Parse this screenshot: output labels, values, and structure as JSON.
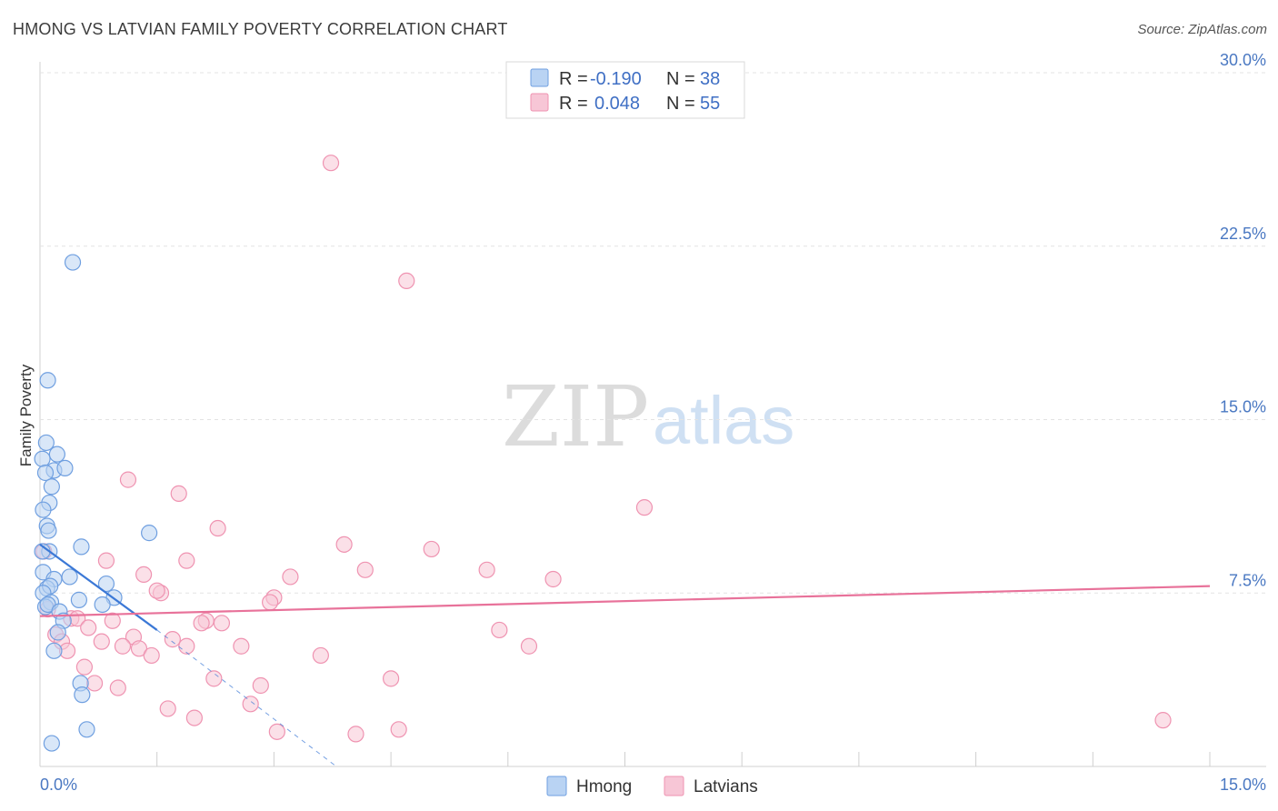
{
  "title": "HMONG VS LATVIAN FAMILY POVERTY CORRELATION CHART",
  "source": "Source: ZipAtlas.com",
  "watermark": {
    "zip": "ZIP",
    "atlas": "atlas"
  },
  "colors": {
    "hmong": "#6f9fe0",
    "hmong_fill": "#b9d3f3",
    "hmong_line": "#3b78d6",
    "latvian": "#ef93b1",
    "latvian_fill": "#f7c6d6",
    "latvian_line": "#e8729a",
    "tick_text": "#4a78c2",
    "grid": "#e3e3e3"
  },
  "legend": {
    "rows": [
      {
        "r_label": "R =",
        "r_value": "-0.190",
        "n_label": "N =",
        "n_value": "38"
      },
      {
        "r_label": "R =",
        "r_value": "0.048",
        "n_label": "N =",
        "n_value": "55"
      }
    ]
  },
  "chart_data": {
    "type": "scatter",
    "title": "HMONG VS LATVIAN FAMILY POVERTY CORRELATION CHART",
    "xlabel": "",
    "ylabel": "Family Poverty",
    "xlim": [
      0,
      15
    ],
    "ylim": [
      0,
      30
    ],
    "x_tick_labels": [
      "0.0%",
      "15.0%"
    ],
    "y_ticks": [
      7.5,
      15.0,
      22.5,
      30.0
    ],
    "y_tick_labels": [
      "7.5%",
      "15.0%",
      "22.5%",
      "30.0%"
    ],
    "grid": true,
    "series": [
      {
        "name": "Hmong",
        "r": -0.19,
        "n": 38,
        "trend": {
          "x": [
            0.0,
            1.5
          ],
          "y": [
            9.6,
            5.9
          ],
          "dashed_to": {
            "x": 3.8,
            "y": 0.0
          }
        },
        "points": [
          {
            "x": 0.42,
            "y": 21.8
          },
          {
            "x": 0.1,
            "y": 16.7
          },
          {
            "x": 0.08,
            "y": 14.0
          },
          {
            "x": 0.22,
            "y": 13.5
          },
          {
            "x": 0.03,
            "y": 13.3
          },
          {
            "x": 0.18,
            "y": 12.8
          },
          {
            "x": 0.32,
            "y": 12.9
          },
          {
            "x": 0.07,
            "y": 12.7
          },
          {
            "x": 0.15,
            "y": 12.1
          },
          {
            "x": 0.12,
            "y": 11.4
          },
          {
            "x": 0.04,
            "y": 11.1
          },
          {
            "x": 0.09,
            "y": 10.4
          },
          {
            "x": 0.11,
            "y": 10.2
          },
          {
            "x": 1.4,
            "y": 10.1
          },
          {
            "x": 0.53,
            "y": 9.5
          },
          {
            "x": 0.12,
            "y": 9.3
          },
          {
            "x": 0.03,
            "y": 9.3
          },
          {
            "x": 0.04,
            "y": 8.4
          },
          {
            "x": 0.18,
            "y": 8.1
          },
          {
            "x": 0.38,
            "y": 8.2
          },
          {
            "x": 0.85,
            "y": 7.9
          },
          {
            "x": 0.09,
            "y": 7.7
          },
          {
            "x": 0.13,
            "y": 7.8
          },
          {
            "x": 0.04,
            "y": 7.5
          },
          {
            "x": 0.5,
            "y": 7.2
          },
          {
            "x": 0.95,
            "y": 7.3
          },
          {
            "x": 0.8,
            "y": 7.0
          },
          {
            "x": 0.14,
            "y": 7.1
          },
          {
            "x": 0.07,
            "y": 6.9
          },
          {
            "x": 0.1,
            "y": 7.0
          },
          {
            "x": 0.25,
            "y": 6.7
          },
          {
            "x": 0.3,
            "y": 6.3
          },
          {
            "x": 0.23,
            "y": 5.8
          },
          {
            "x": 0.18,
            "y": 5.0
          },
          {
            "x": 0.52,
            "y": 3.6
          },
          {
            "x": 0.54,
            "y": 3.1
          },
          {
            "x": 0.6,
            "y": 1.6
          },
          {
            "x": 0.15,
            "y": 1.0
          }
        ]
      },
      {
        "name": "Latvians",
        "r": 0.048,
        "n": 55,
        "trend": {
          "x": [
            0.0,
            15.0
          ],
          "y": [
            6.5,
            7.8
          ]
        },
        "points": [
          {
            "x": 3.73,
            "y": 26.1
          },
          {
            "x": 4.7,
            "y": 21.0
          },
          {
            "x": 7.75,
            "y": 11.2
          },
          {
            "x": 1.13,
            "y": 12.4
          },
          {
            "x": 1.78,
            "y": 11.8
          },
          {
            "x": 2.28,
            "y": 10.3
          },
          {
            "x": 3.9,
            "y": 9.6
          },
          {
            "x": 5.02,
            "y": 9.4
          },
          {
            "x": 1.88,
            "y": 8.9
          },
          {
            "x": 0.85,
            "y": 8.9
          },
          {
            "x": 5.73,
            "y": 8.5
          },
          {
            "x": 4.17,
            "y": 8.5
          },
          {
            "x": 1.33,
            "y": 8.3
          },
          {
            "x": 3.21,
            "y": 8.2
          },
          {
            "x": 6.58,
            "y": 8.1
          },
          {
            "x": 1.55,
            "y": 7.5
          },
          {
            "x": 1.5,
            "y": 7.6
          },
          {
            "x": 3.0,
            "y": 7.3
          },
          {
            "x": 2.95,
            "y": 7.1
          },
          {
            "x": 0.05,
            "y": 9.3
          },
          {
            "x": 0.1,
            "y": 6.8
          },
          {
            "x": 0.4,
            "y": 6.4
          },
          {
            "x": 0.48,
            "y": 6.4
          },
          {
            "x": 0.93,
            "y": 6.3
          },
          {
            "x": 2.13,
            "y": 6.3
          },
          {
            "x": 2.07,
            "y": 6.2
          },
          {
            "x": 2.33,
            "y": 6.2
          },
          {
            "x": 0.62,
            "y": 6.0
          },
          {
            "x": 5.89,
            "y": 5.9
          },
          {
            "x": 0.2,
            "y": 5.7
          },
          {
            "x": 1.2,
            "y": 5.6
          },
          {
            "x": 1.7,
            "y": 5.5
          },
          {
            "x": 0.79,
            "y": 5.4
          },
          {
            "x": 0.28,
            "y": 5.4
          },
          {
            "x": 1.06,
            "y": 5.2
          },
          {
            "x": 1.27,
            "y": 5.1
          },
          {
            "x": 1.88,
            "y": 5.2
          },
          {
            "x": 2.58,
            "y": 5.2
          },
          {
            "x": 6.27,
            "y": 5.2
          },
          {
            "x": 0.35,
            "y": 5.0
          },
          {
            "x": 1.43,
            "y": 4.8
          },
          {
            "x": 3.6,
            "y": 4.8
          },
          {
            "x": 0.57,
            "y": 4.3
          },
          {
            "x": 2.23,
            "y": 3.8
          },
          {
            "x": 4.5,
            "y": 3.8
          },
          {
            "x": 0.7,
            "y": 3.6
          },
          {
            "x": 1.0,
            "y": 3.4
          },
          {
            "x": 2.83,
            "y": 3.5
          },
          {
            "x": 2.7,
            "y": 2.7
          },
          {
            "x": 1.64,
            "y": 2.5
          },
          {
            "x": 1.98,
            "y": 2.1
          },
          {
            "x": 3.04,
            "y": 1.5
          },
          {
            "x": 4.05,
            "y": 1.4
          },
          {
            "x": 4.6,
            "y": 1.6
          },
          {
            "x": 14.4,
            "y": 2.0
          }
        ]
      }
    ],
    "legend_position": "top-center",
    "bottom_legend": [
      "Hmong",
      "Latvians"
    ]
  }
}
